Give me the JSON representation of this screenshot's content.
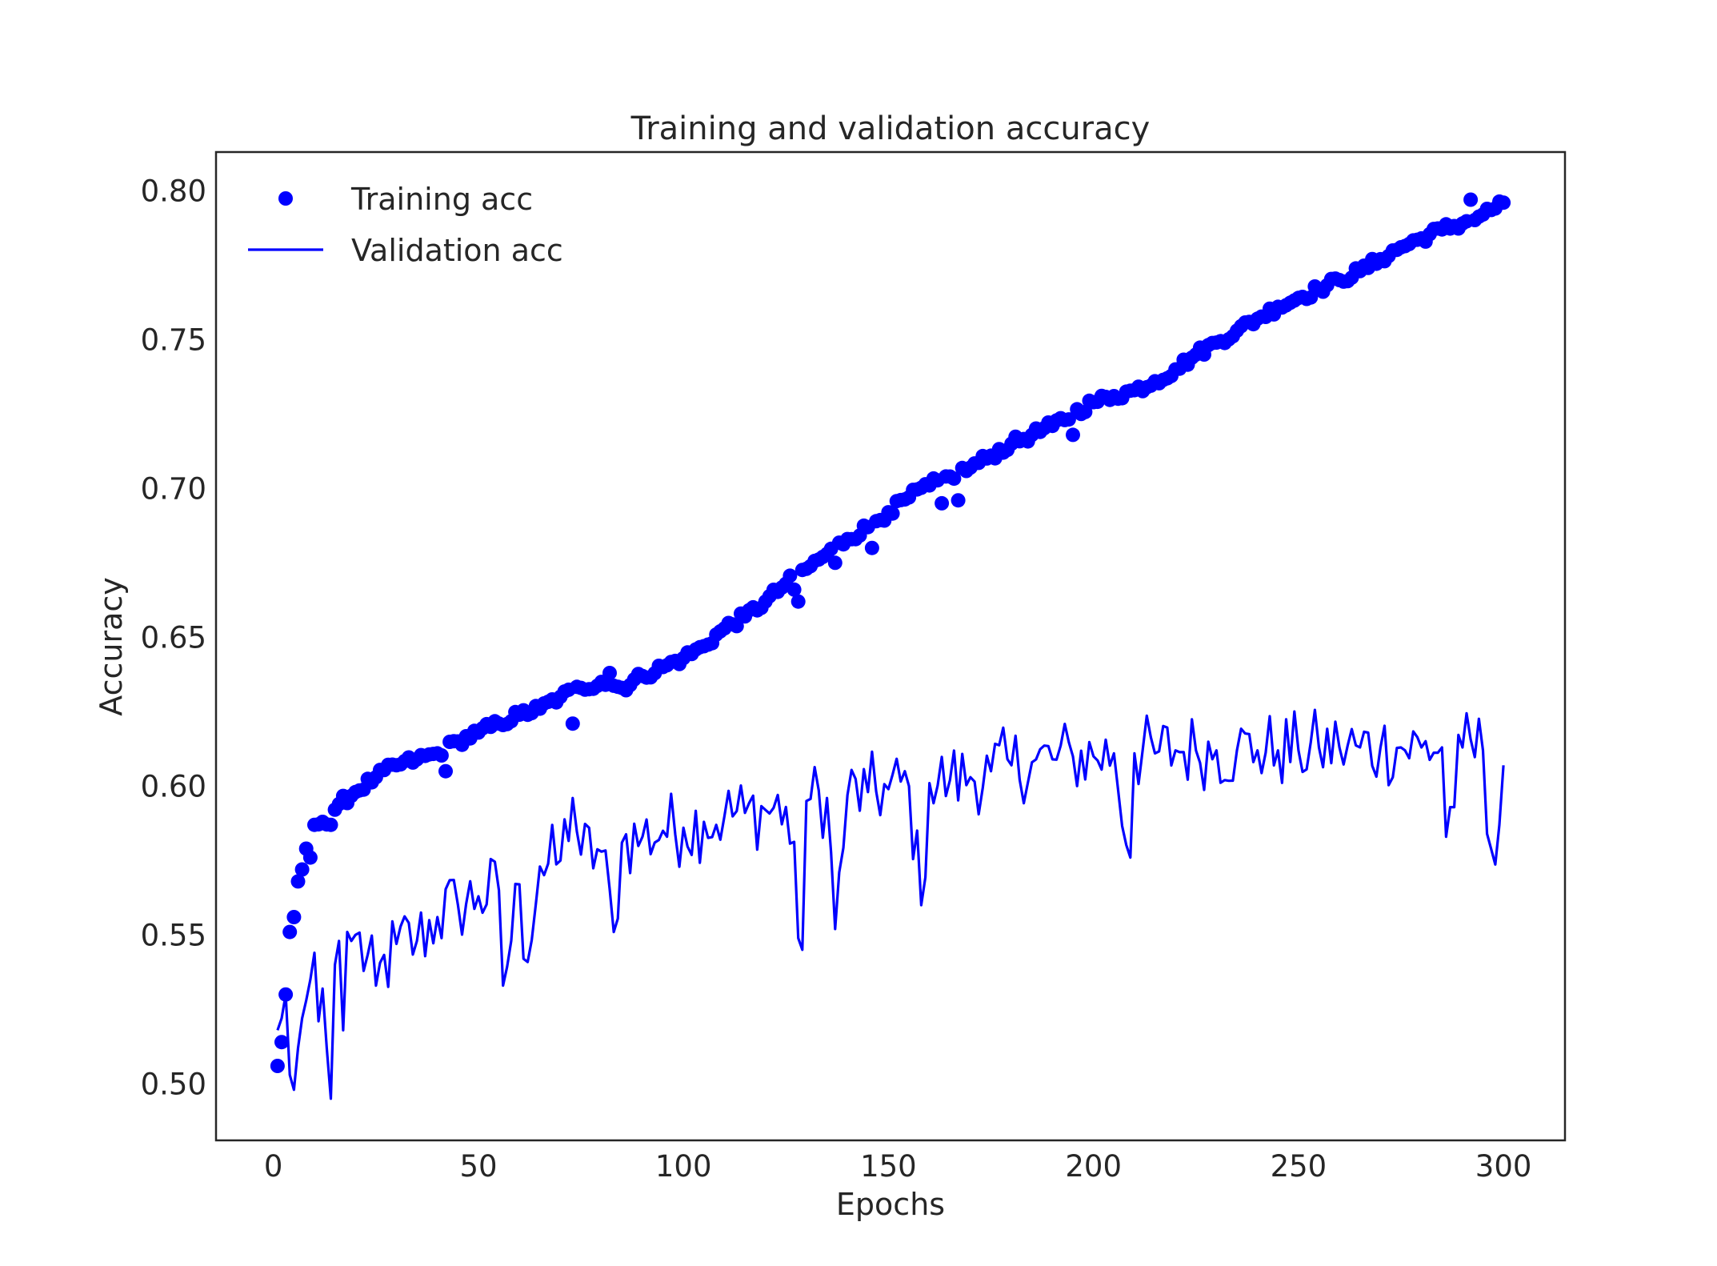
{
  "chart_data": {
    "type": "line",
    "title": "Training and validation accuracy",
    "xlabel": "Epochs",
    "ylabel": "Accuracy",
    "xlim": [
      -14,
      315
    ],
    "ylim": [
      0.481,
      0.813
    ],
    "xticks": [
      0,
      50,
      100,
      150,
      200,
      250,
      300
    ],
    "xtick_labels": [
      "0",
      "50",
      "100",
      "150",
      "200",
      "250",
      "300"
    ],
    "yticks": [
      0.5,
      0.55,
      0.6,
      0.65,
      0.7,
      0.75,
      0.8
    ],
    "ytick_labels": [
      "0.50",
      "0.55",
      "0.60",
      "0.65",
      "0.70",
      "0.75",
      "0.80"
    ],
    "grid": false,
    "legend": {
      "position": "top-left"
    },
    "epochs": {
      "start": 1,
      "end": 300
    },
    "colors": {
      "series": "#0000ff",
      "frame": "#262626",
      "text": "#262626"
    },
    "series": [
      {
        "name": "Training acc",
        "style": "scatter",
        "keypoints": [
          [
            1,
            0.506
          ],
          [
            2,
            0.514
          ],
          [
            3,
            0.53
          ],
          [
            4,
            0.551
          ],
          [
            5,
            0.556
          ],
          [
            6,
            0.568
          ],
          [
            7,
            0.572
          ],
          [
            8,
            0.579
          ],
          [
            9,
            0.576
          ],
          [
            10,
            0.587
          ],
          [
            12,
            0.588
          ],
          [
            14,
            0.587
          ],
          [
            16,
            0.594
          ],
          [
            20,
            0.598
          ],
          [
            25,
            0.603
          ],
          [
            30,
            0.607
          ],
          [
            35,
            0.609
          ],
          [
            40,
            0.611
          ],
          [
            45,
            0.615
          ],
          [
            50,
            0.618
          ],
          [
            55,
            0.621
          ],
          [
            60,
            0.624
          ],
          [
            65,
            0.626
          ],
          [
            70,
            0.63
          ],
          [
            75,
            0.633
          ],
          [
            80,
            0.635
          ],
          [
            85,
            0.633
          ],
          [
            90,
            0.637
          ],
          [
            95,
            0.64
          ],
          [
            100,
            0.643
          ],
          [
            105,
            0.647
          ],
          [
            110,
            0.653
          ],
          [
            115,
            0.657
          ],
          [
            120,
            0.662
          ],
          [
            125,
            0.668
          ],
          [
            130,
            0.673
          ],
          [
            135,
            0.678
          ],
          [
            140,
            0.683
          ],
          [
            145,
            0.687
          ],
          [
            150,
            0.692
          ],
          [
            155,
            0.697
          ],
          [
            160,
            0.701
          ],
          [
            165,
            0.704
          ],
          [
            170,
            0.707
          ],
          [
            175,
            0.711
          ],
          [
            180,
            0.715
          ],
          [
            185,
            0.718
          ],
          [
            190,
            0.721
          ],
          [
            195,
            0.725
          ],
          [
            200,
            0.729
          ],
          [
            205,
            0.731
          ],
          [
            210,
            0.733
          ],
          [
            215,
            0.736
          ],
          [
            220,
            0.74
          ],
          [
            225,
            0.745
          ],
          [
            230,
            0.749
          ],
          [
            235,
            0.753
          ],
          [
            240,
            0.757
          ],
          [
            245,
            0.761
          ],
          [
            250,
            0.764
          ],
          [
            255,
            0.767
          ],
          [
            260,
            0.77
          ],
          [
            265,
            0.773
          ],
          [
            270,
            0.777
          ],
          [
            275,
            0.781
          ],
          [
            280,
            0.784
          ],
          [
            285,
            0.787
          ],
          [
            290,
            0.789
          ],
          [
            295,
            0.792
          ],
          [
            300,
            0.796
          ]
        ],
        "outliers": [
          [
            3,
            0.53
          ],
          [
            14,
            0.587
          ],
          [
            42,
            0.605
          ],
          [
            73,
            0.621
          ],
          [
            82,
            0.638
          ],
          [
            127,
            0.666
          ],
          [
            128,
            0.662
          ],
          [
            137,
            0.675
          ],
          [
            146,
            0.68
          ],
          [
            163,
            0.695
          ],
          [
            167,
            0.696
          ],
          [
            195,
            0.718
          ],
          [
            218,
            0.737
          ],
          [
            292,
            0.797
          ]
        ],
        "noise": 0.0018
      },
      {
        "name": "Validation acc",
        "style": "line",
        "keypoints": [
          [
            1,
            0.518
          ],
          [
            2,
            0.522
          ],
          [
            3,
            0.53
          ],
          [
            4,
            0.503
          ],
          [
            5,
            0.498
          ],
          [
            6,
            0.512
          ],
          [
            7,
            0.522
          ],
          [
            8,
            0.528
          ],
          [
            9,
            0.535
          ],
          [
            10,
            0.544
          ],
          [
            11,
            0.521
          ],
          [
            12,
            0.532
          ],
          [
            13,
            0.512
          ],
          [
            14,
            0.495
          ],
          [
            15,
            0.54
          ],
          [
            16,
            0.548
          ],
          [
            17,
            0.518
          ],
          [
            18,
            0.551
          ],
          [
            19,
            0.548
          ],
          [
            20,
            0.55
          ],
          [
            25,
            0.533
          ],
          [
            30,
            0.547
          ],
          [
            35,
            0.548
          ],
          [
            40,
            0.556
          ],
          [
            45,
            0.56
          ],
          [
            50,
            0.563
          ],
          [
            55,
            0.565
          ],
          [
            56,
            0.533
          ],
          [
            60,
            0.567
          ],
          [
            61,
            0.542
          ],
          [
            65,
            0.573
          ],
          [
            70,
            0.575
          ],
          [
            73,
            0.596
          ],
          [
            75,
            0.577
          ],
          [
            80,
            0.578
          ],
          [
            83,
            0.551
          ],
          [
            85,
            0.581
          ],
          [
            90,
            0.583
          ],
          [
            95,
            0.585
          ],
          [
            100,
            0.586
          ],
          [
            105,
            0.588
          ],
          [
            110,
            0.59
          ],
          [
            115,
            0.591
          ],
          [
            120,
            0.592
          ],
          [
            125,
            0.593
          ],
          [
            129,
            0.545
          ],
          [
            130,
            0.595
          ],
          [
            135,
            0.596
          ],
          [
            137,
            0.552
          ],
          [
            140,
            0.597
          ],
          [
            145,
            0.598
          ],
          [
            150,
            0.599
          ],
          [
            155,
            0.6
          ],
          [
            158,
            0.56
          ],
          [
            160,
            0.601
          ],
          [
            165,
            0.602
          ],
          [
            170,
            0.603
          ],
          [
            175,
            0.605
          ],
          [
            180,
            0.607
          ],
          [
            185,
            0.608
          ],
          [
            190,
            0.609
          ],
          [
            195,
            0.61
          ],
          [
            200,
            0.61
          ],
          [
            205,
            0.611
          ],
          [
            209,
            0.576
          ],
          [
            210,
            0.611
          ],
          [
            215,
            0.611
          ],
          [
            220,
            0.612
          ],
          [
            225,
            0.612
          ],
          [
            230,
            0.612
          ],
          [
            235,
            0.612
          ],
          [
            240,
            0.612
          ],
          [
            245,
            0.612
          ],
          [
            250,
            0.612
          ],
          [
            255,
            0.613
          ],
          [
            260,
            0.613
          ],
          [
            265,
            0.613
          ],
          [
            270,
            0.613
          ],
          [
            275,
            0.613
          ],
          [
            280,
            0.613
          ],
          [
            285,
            0.613
          ],
          [
            286,
            0.583
          ],
          [
            290,
            0.613
          ],
          [
            295,
            0.612
          ],
          [
            296,
            0.584
          ],
          [
            299,
            0.587
          ],
          [
            300,
            0.607
          ]
        ],
        "noise": 0.0135
      }
    ]
  }
}
